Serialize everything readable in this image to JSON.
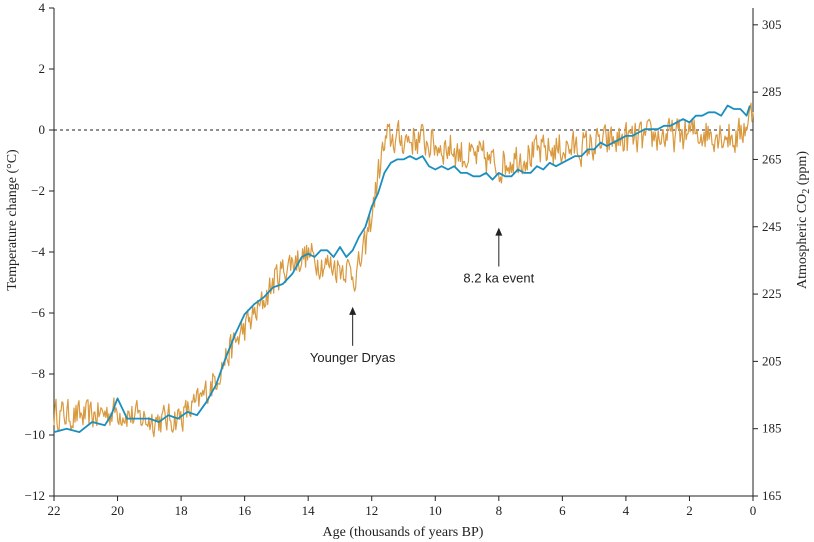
{
  "chart_data": {
    "type": "line",
    "title": "",
    "xlabel": "Age (thousands of years BP)",
    "ylabel_left": "Temperature change (°C)",
    "ylabel_right_prefix": "Atmospheric CO",
    "ylabel_right_sub": "2",
    "ylabel_right_suffix": " (ppm)",
    "xlim": [
      22,
      0
    ],
    "ylim_left": [
      -12,
      4
    ],
    "ylim_right": [
      165,
      310
    ],
    "x_ticks": [
      22,
      20,
      18,
      16,
      14,
      12,
      10,
      8,
      6,
      4,
      2,
      0
    ],
    "y_ticks_left": [
      4,
      2,
      0,
      -2,
      -4,
      -6,
      -8,
      -10,
      -12
    ],
    "y_tick_labels_left": [
      "4",
      "2",
      "0",
      "−2",
      "−4",
      "−6",
      "−8",
      "−10",
      "−12"
    ],
    "y_ticks_right": [
      305,
      285,
      265,
      245,
      225,
      205,
      185,
      165
    ],
    "zero_reference": 0,
    "series": [
      {
        "name": "Temperature change",
        "axis": "left",
        "color": "#d9993f",
        "anchors": {
          "x": [
            22,
            21,
            20,
            19.5,
            19,
            18.5,
            18,
            17.5,
            17,
            16.5,
            16,
            15.5,
            15,
            14.5,
            14,
            13.5,
            13,
            12.8,
            12.5,
            12.2,
            12,
            11.7,
            11.5,
            11,
            10.5,
            10,
            9.5,
            9,
            8.5,
            8,
            7.5,
            7,
            6.5,
            6,
            5.5,
            5,
            4.5,
            4,
            3.5,
            3,
            2.5,
            2,
            1.5,
            1,
            0.5,
            0
          ],
          "y": [
            -9.3,
            -9.4,
            -9.2,
            -9.4,
            -9.5,
            -9.5,
            -9.4,
            -9.0,
            -8.3,
            -7.3,
            -6.5,
            -5.8,
            -4.8,
            -4.3,
            -4.1,
            -4.4,
            -4.5,
            -4.5,
            -4.8,
            -3.8,
            -2.8,
            -0.9,
            -0.3,
            -0.3,
            -0.3,
            -0.5,
            -0.6,
            -0.9,
            -0.9,
            -1.2,
            -0.9,
            -0.8,
            -0.7,
            -0.6,
            -0.6,
            -0.5,
            -0.4,
            -0.3,
            -0.3,
            -0.2,
            -0.2,
            -0.1,
            -0.1,
            -0.1,
            -0.3,
            0.6
          ]
        },
        "noise_amplitude": 0.7,
        "point_count": 700
      },
      {
        "name": "Atmospheric CO2",
        "axis": "right",
        "color": "#1a8fbf",
        "x": [
          22,
          21.6,
          21.2,
          20.8,
          20.4,
          20.2,
          20.0,
          19.7,
          19.3,
          19.0,
          18.7,
          18.4,
          18.1,
          17.8,
          17.5,
          17.2,
          16.9,
          16.6,
          16.3,
          16.0,
          15.7,
          15.4,
          15.1,
          14.8,
          14.5,
          14.2,
          14.0,
          13.8,
          13.6,
          13.4,
          13.2,
          13.0,
          12.8,
          12.6,
          12.4,
          12.2,
          12.0,
          11.8,
          11.6,
          11.4,
          11.2,
          11.0,
          10.8,
          10.6,
          10.4,
          10.2,
          10.0,
          9.8,
          9.6,
          9.4,
          9.2,
          9.0,
          8.8,
          8.6,
          8.4,
          8.2,
          8.0,
          7.8,
          7.6,
          7.4,
          7.2,
          7.0,
          6.8,
          6.6,
          6.4,
          6.2,
          6.0,
          5.8,
          5.6,
          5.4,
          5.2,
          5.0,
          4.8,
          4.6,
          4.4,
          4.2,
          4.0,
          3.8,
          3.6,
          3.4,
          3.2,
          3.0,
          2.8,
          2.6,
          2.4,
          2.2,
          2.0,
          1.8,
          1.6,
          1.4,
          1.2,
          1.0,
          0.8,
          0.6,
          0.4,
          0.3,
          0.2,
          0.1
        ],
        "y": [
          184,
          185,
          184,
          187,
          186,
          189,
          194,
          188,
          188,
          188,
          187,
          189,
          188,
          190,
          189,
          193,
          198,
          206,
          213,
          219,
          222,
          224,
          227,
          228,
          231,
          236,
          237,
          236,
          238,
          238,
          236,
          239,
          236,
          238,
          242,
          245,
          251,
          255,
          261,
          264,
          265,
          265,
          266,
          265,
          266,
          263,
          262,
          263,
          262,
          263,
          261,
          261,
          260,
          260,
          261,
          259,
          261,
          260,
          260,
          262,
          261,
          261,
          263,
          262,
          264,
          263,
          264,
          265,
          266,
          266,
          268,
          268,
          270,
          269,
          270,
          271,
          272,
          272,
          273,
          274,
          274,
          274,
          275,
          275,
          276,
          277,
          276,
          278,
          278,
          279,
          279,
          278,
          281,
          280,
          280,
          279,
          278,
          281
        ]
      }
    ],
    "annotations": [
      {
        "text": "Younger Dryas",
        "x": 12.6,
        "target_y": -5.8,
        "label_y": -7.6
      },
      {
        "text": "8.2 ka event",
        "x": 8.0,
        "target_y": -3.2,
        "label_y": -5.0
      }
    ]
  }
}
